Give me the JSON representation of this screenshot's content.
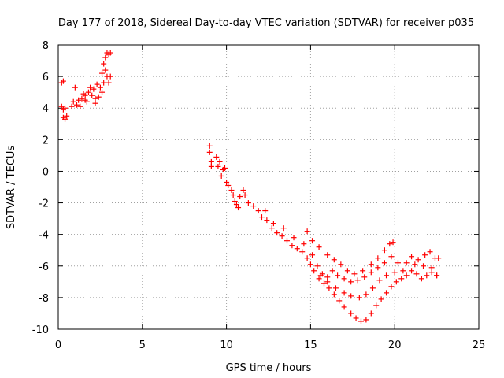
{
  "chart_data": {
    "type": "scatter",
    "title": "Day 177 of 2018, Sidereal Day-to-day VTEC variation (SDTVAR) for receiver p035",
    "xlabel": "GPS time / hours",
    "ylabel": "SDTVAR / TECUs",
    "xlim": [
      0,
      25
    ],
    "ylim": [
      -10,
      8
    ],
    "x_ticks": [
      "0",
      "5",
      "10",
      "15",
      "20",
      "25"
    ],
    "y_ticks": [
      "-10",
      "-8",
      "-6",
      "-4",
      "-2",
      "0",
      "2",
      "4",
      "6",
      "8"
    ],
    "grid": true,
    "marker": "+",
    "color": "#ff0000",
    "series": [
      {
        "name": "SDTVAR",
        "points": [
          [
            0.2,
            5.6
          ],
          [
            0.3,
            5.7
          ],
          [
            0.2,
            4.1
          ],
          [
            0.3,
            3.9
          ],
          [
            0.4,
            4.0
          ],
          [
            0.3,
            3.4
          ],
          [
            0.4,
            3.3
          ],
          [
            0.5,
            3.5
          ],
          [
            0.8,
            4.1
          ],
          [
            0.9,
            4.4
          ],
          [
            1.0,
            5.3
          ],
          [
            1.1,
            4.2
          ],
          [
            1.2,
            4.5
          ],
          [
            1.3,
            4.1
          ],
          [
            1.4,
            4.6
          ],
          [
            1.5,
            4.9
          ],
          [
            1.6,
            4.5
          ],
          [
            1.7,
            4.4
          ],
          [
            1.8,
            5.0
          ],
          [
            1.9,
            5.3
          ],
          [
            2.0,
            4.8
          ],
          [
            2.1,
            5.2
          ],
          [
            2.2,
            4.6
          ],
          [
            2.3,
            5.5
          ],
          [
            2.4,
            4.7
          ],
          [
            2.5,
            5.3
          ],
          [
            2.6,
            5.0
          ],
          [
            2.6,
            6.2
          ],
          [
            2.7,
            5.6
          ],
          [
            2.7,
            6.8
          ],
          [
            2.8,
            6.4
          ],
          [
            2.8,
            7.2
          ],
          [
            2.9,
            7.5
          ],
          [
            2.9,
            6.0
          ],
          [
            3.0,
            5.6
          ],
          [
            3.0,
            7.4
          ],
          [
            3.1,
            7.5
          ],
          [
            3.1,
            6.0
          ],
          [
            2.2,
            4.3
          ],
          [
            1.6,
            4.8
          ],
          [
            9.0,
            1.6
          ],
          [
            9.0,
            1.2
          ],
          [
            9.1,
            0.3
          ],
          [
            9.1,
            0.6
          ],
          [
            9.4,
            0.9
          ],
          [
            9.5,
            0.3
          ],
          [
            9.6,
            0.6
          ],
          [
            9.7,
            -0.3
          ],
          [
            9.8,
            0.1
          ],
          [
            9.9,
            0.2
          ],
          [
            10.0,
            -0.7
          ],
          [
            10.1,
            -0.9
          ],
          [
            10.3,
            -1.2
          ],
          [
            10.4,
            -1.5
          ],
          [
            10.5,
            -1.9
          ],
          [
            10.6,
            -2.1
          ],
          [
            10.7,
            -2.3
          ],
          [
            10.8,
            -1.6
          ],
          [
            11.0,
            -1.2
          ],
          [
            11.1,
            -1.5
          ],
          [
            11.3,
            -2.0
          ],
          [
            11.6,
            -2.2
          ],
          [
            11.9,
            -2.5
          ],
          [
            12.1,
            -2.9
          ],
          [
            12.4,
            -3.1
          ],
          [
            12.7,
            -3.6
          ],
          [
            13.0,
            -3.9
          ],
          [
            13.3,
            -4.1
          ],
          [
            13.6,
            -4.4
          ],
          [
            13.9,
            -4.7
          ],
          [
            14.2,
            -4.9
          ],
          [
            14.5,
            -5.1
          ],
          [
            14.8,
            -5.5
          ],
          [
            15.0,
            -5.9
          ],
          [
            15.2,
            -6.3
          ],
          [
            15.5,
            -6.8
          ],
          [
            15.8,
            -7.1
          ],
          [
            16.1,
            -7.4
          ],
          [
            16.4,
            -7.8
          ],
          [
            16.7,
            -8.2
          ],
          [
            17.0,
            -8.6
          ],
          [
            17.4,
            -9.0
          ],
          [
            17.7,
            -9.3
          ],
          [
            18.0,
            -9.5
          ],
          [
            18.3,
            -9.4
          ],
          [
            18.6,
            -9.0
          ],
          [
            18.9,
            -8.5
          ],
          [
            19.2,
            -8.1
          ],
          [
            19.5,
            -7.7
          ],
          [
            19.8,
            -7.3
          ],
          [
            20.1,
            -7.0
          ],
          [
            20.4,
            -6.8
          ],
          [
            20.7,
            -6.6
          ],
          [
            21.0,
            -6.3
          ],
          [
            21.3,
            -6.5
          ],
          [
            21.6,
            -6.8
          ],
          [
            21.9,
            -6.6
          ],
          [
            22.2,
            -6.4
          ],
          [
            22.5,
            -6.6
          ],
          [
            21.0,
            -5.4
          ],
          [
            21.4,
            -5.6
          ],
          [
            21.8,
            -5.3
          ],
          [
            22.1,
            -5.1
          ],
          [
            22.4,
            -5.5
          ],
          [
            22.6,
            -5.5
          ],
          [
            12.3,
            -2.5
          ],
          [
            12.8,
            -3.3
          ],
          [
            13.4,
            -3.6
          ],
          [
            14.0,
            -4.2
          ],
          [
            14.6,
            -4.6
          ],
          [
            15.1,
            -5.3
          ],
          [
            15.4,
            -6.0
          ],
          [
            15.7,
            -6.5
          ],
          [
            16.0,
            -6.7
          ],
          [
            16.3,
            -6.3
          ],
          [
            16.6,
            -6.6
          ],
          [
            17.0,
            -6.8
          ],
          [
            17.4,
            -7.0
          ],
          [
            17.8,
            -6.9
          ],
          [
            18.2,
            -6.7
          ],
          [
            18.6,
            -6.4
          ],
          [
            19.0,
            -6.1
          ],
          [
            19.4,
            -5.8
          ],
          [
            19.8,
            -5.4
          ],
          [
            15.6,
            -6.6
          ],
          [
            16.0,
            -7.0
          ],
          [
            16.5,
            -7.4
          ],
          [
            17.0,
            -7.7
          ],
          [
            17.4,
            -7.9
          ],
          [
            17.9,
            -8.0
          ],
          [
            18.3,
            -7.8
          ],
          [
            18.7,
            -7.4
          ],
          [
            19.1,
            -6.9
          ],
          [
            19.5,
            -6.6
          ],
          [
            20.0,
            -6.4
          ],
          [
            20.5,
            -6.3
          ],
          [
            14.8,
            -3.8
          ],
          [
            15.1,
            -4.4
          ],
          [
            15.5,
            -4.8
          ],
          [
            16.0,
            -5.3
          ],
          [
            16.4,
            -5.6
          ],
          [
            16.8,
            -5.9
          ],
          [
            17.2,
            -6.3
          ],
          [
            17.6,
            -6.5
          ],
          [
            18.1,
            -6.3
          ],
          [
            18.6,
            -5.9
          ],
          [
            19.0,
            -5.5
          ],
          [
            19.4,
            -5.0
          ],
          [
            19.7,
            -4.6
          ],
          [
            19.9,
            -4.5
          ],
          [
            20.2,
            -5.8
          ],
          [
            20.7,
            -5.8
          ],
          [
            21.2,
            -5.9
          ],
          [
            21.7,
            -6.0
          ],
          [
            22.2,
            -6.1
          ],
          [
            22.5,
            -6.6
          ]
        ]
      }
    ]
  }
}
